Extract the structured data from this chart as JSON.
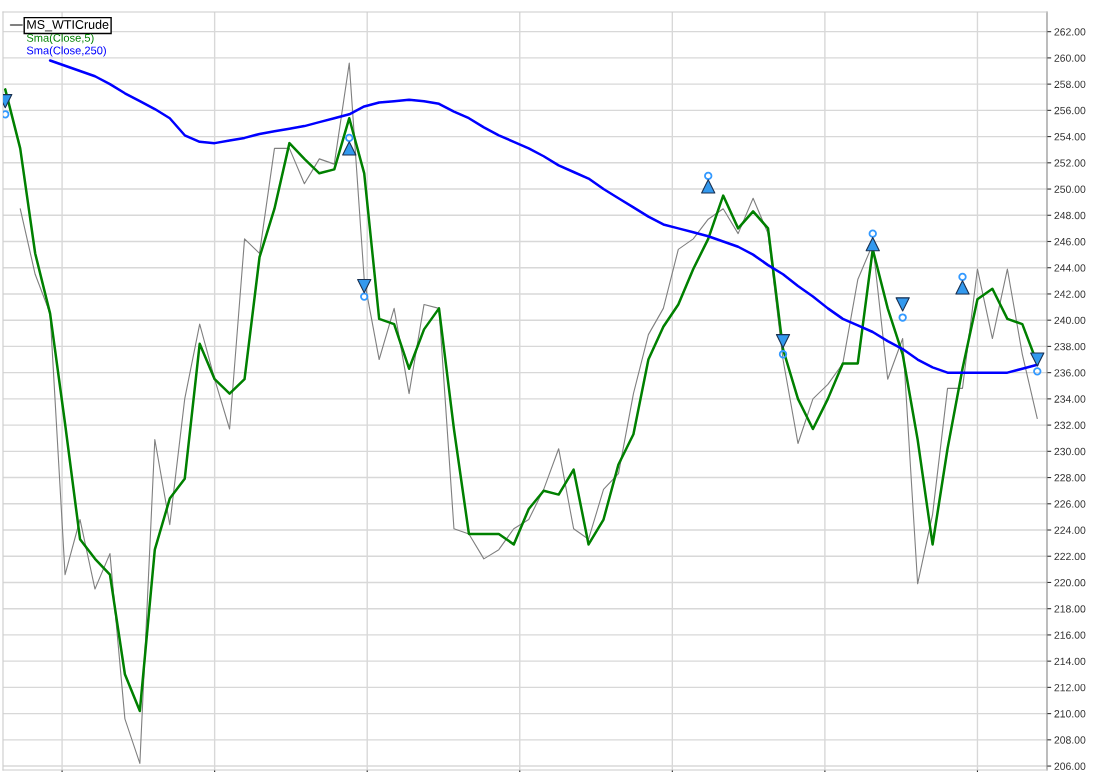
{
  "chart_data": {
    "type": "line",
    "categories": [
      null,
      null,
      null,
      null,
      null,
      null,
      null,
      null,
      null,
      null,
      null,
      null,
      null,
      null,
      null,
      null,
      null,
      null,
      null,
      null,
      null,
      null,
      null,
      null,
      null,
      null,
      null,
      null,
      null,
      null,
      null,
      null,
      null,
      null,
      null,
      null,
      null,
      null,
      null,
      null,
      null,
      null,
      null,
      null,
      null,
      null,
      null,
      null,
      null,
      null,
      null,
      null,
      null,
      null,
      null,
      null,
      null,
      null,
      null,
      null,
      null,
      null,
      null,
      null,
      null,
      null,
      null,
      null,
      null,
      null
    ],
    "series": [
      {
        "name": "MS_WTICrude",
        "color": "#808080",
        "values": [
          null,
          248.5,
          243.5,
          240.5,
          220.6,
          224.8,
          219.5,
          222.2,
          209.6,
          206.2,
          230.9,
          224.4,
          234.0,
          239.7,
          235.5,
          231.7,
          246.2,
          245.1,
          253.1,
          253.1,
          250.4,
          252.3,
          251.9,
          259.6,
          243.1,
          237.0,
          240.9,
          234.4,
          241.2,
          240.9,
          224.1,
          223.7,
          221.8,
          222.5,
          224.1,
          224.8,
          227.1,
          230.2,
          224.1,
          223.3,
          227.1,
          228.3,
          234.4,
          238.9,
          240.9,
          245.4,
          246.2,
          247.7,
          248.5,
          246.6,
          249.3,
          246.6,
          237.0,
          230.6,
          234.0,
          235.1,
          236.7,
          243.1,
          245.8,
          235.5,
          238.6,
          219.9,
          225.2,
          234.8,
          234.8,
          243.9,
          238.6,
          243.9,
          237.4,
          232.5
        ]
      },
      {
        "name": "Sma(Close,5)",
        "color": "#008000",
        "values": [
          257.6,
          253.1,
          245.1,
          240.5,
          232.1,
          223.3,
          221.8,
          220.6,
          213.0,
          210.2,
          222.5,
          226.4,
          227.9,
          238.2,
          235.5,
          234.4,
          235.5,
          244.8,
          248.5,
          253.5,
          252.3,
          251.2,
          251.5,
          255.4,
          251.2,
          240.1,
          239.7,
          236.3,
          239.3,
          240.9,
          231.7,
          223.7,
          223.7,
          223.7,
          222.9,
          225.6,
          227.0,
          226.7,
          228.6,
          222.9,
          224.8,
          229.0,
          231.3,
          237.0,
          239.5,
          241.2,
          243.9,
          246.2,
          249.5,
          247.0,
          248.3,
          247.0,
          237.8,
          234.0,
          231.7,
          234.0,
          236.7,
          236.7,
          245.4,
          240.9,
          237.4,
          230.9,
          222.9,
          230.2,
          236.3,
          241.6,
          242.4,
          240.1,
          239.7,
          236.7
        ]
      },
      {
        "name": "Sma(Close,250)",
        "color": "#0000ff",
        "values": [
          null,
          null,
          null,
          259.8,
          259.4,
          259.0,
          258.6,
          258.0,
          257.3,
          256.7,
          256.1,
          255.4,
          254.1,
          253.6,
          253.5,
          253.7,
          253.9,
          254.2,
          254.4,
          254.6,
          254.8,
          255.1,
          255.4,
          255.7,
          256.3,
          256.6,
          256.7,
          256.8,
          256.7,
          256.5,
          255.9,
          255.4,
          254.7,
          254.1,
          253.6,
          253.1,
          252.5,
          251.8,
          251.3,
          250.8,
          250.0,
          249.3,
          248.6,
          247.9,
          247.3,
          247.0,
          246.7,
          246.4,
          246.0,
          245.6,
          245.0,
          244.2,
          243.5,
          242.6,
          241.8,
          240.9,
          240.1,
          239.6,
          239.1,
          238.4,
          237.8,
          237.0,
          236.4,
          236.0,
          236.0,
          236.0,
          236.0,
          236.0,
          236.3,
          236.6
        ]
      },
      {
        "color": "#3399ee",
        "type": "scatter",
        "marker": "triangle",
        "values": [
          null,
          null,
          null,
          null,
          null,
          null,
          null,
          null,
          null,
          null,
          null,
          null,
          null,
          null,
          null,
          null,
          null,
          null,
          null,
          null,
          null,
          null,
          null,
          253.1,
          null,
          null,
          null,
          null,
          null,
          null,
          null,
          null,
          null,
          null,
          null,
          null,
          null,
          null,
          null,
          null,
          null,
          null,
          null,
          null,
          null,
          null,
          null,
          250.2,
          null,
          null,
          null,
          null,
          null,
          null,
          null,
          null,
          null,
          null,
          245.8,
          null,
          null,
          null,
          null,
          null,
          242.5,
          null,
          null,
          null,
          null,
          null
        ]
      },
      {
        "color": "#3399ee",
        "type": "scatter",
        "marker": "triangle_down",
        "values": [
          256.7,
          null,
          null,
          null,
          null,
          null,
          null,
          null,
          null,
          null,
          null,
          null,
          null,
          null,
          null,
          null,
          null,
          null,
          null,
          null,
          null,
          null,
          null,
          null,
          242.6,
          null,
          null,
          null,
          null,
          null,
          null,
          null,
          null,
          null,
          null,
          null,
          null,
          null,
          null,
          null,
          null,
          null,
          null,
          null,
          null,
          null,
          null,
          null,
          null,
          null,
          null,
          null,
          238.4,
          null,
          null,
          null,
          null,
          null,
          null,
          null,
          241.2,
          null,
          null,
          null,
          null,
          null,
          null,
          null,
          null,
          237.0
        ]
      },
      {
        "color": "#3399ff",
        "type": "scatter",
        "marker": "circle",
        "values": [
          255.7,
          null,
          null,
          null,
          null,
          null,
          null,
          null,
          null,
          null,
          null,
          null,
          null,
          null,
          null,
          null,
          null,
          null,
          null,
          null,
          null,
          null,
          null,
          253.9,
          241.8,
          null,
          null,
          null,
          null,
          null,
          null,
          null,
          null,
          null,
          null,
          null,
          null,
          null,
          null,
          null,
          null,
          null,
          null,
          null,
          null,
          null,
          null,
          251.0,
          null,
          null,
          null,
          null,
          237.4,
          null,
          null,
          null,
          null,
          null,
          246.6,
          null,
          240.2,
          null,
          null,
          null,
          243.3,
          null,
          null,
          null,
          null,
          236.1
        ]
      }
    ],
    "ylim": [
      205.7,
      263.5
    ],
    "yticks": [
      {
        "value": 206,
        "label": "206.00"
      },
      {
        "value": 208,
        "label": "208.00"
      },
      {
        "value": 210,
        "label": "210.00"
      },
      {
        "value": 212,
        "label": "212.00"
      },
      {
        "value": 214,
        "label": "214.00"
      },
      {
        "value": 216,
        "label": "216.00"
      },
      {
        "value": 218,
        "label": "218.00"
      },
      {
        "value": 220,
        "label": "220.00"
      },
      {
        "value": 222,
        "label": "222.00"
      },
      {
        "value": 224,
        "label": "224.00"
      },
      {
        "value": 226,
        "label": "226.00"
      },
      {
        "value": 228,
        "label": "228.00"
      },
      {
        "value": 230,
        "label": "230.00"
      },
      {
        "value": 232,
        "label": "232.00"
      },
      {
        "value": 234,
        "label": "234.00"
      },
      {
        "value": 236,
        "label": "236.00"
      },
      {
        "value": 238,
        "label": "238.00"
      },
      {
        "value": 240,
        "label": "240.00"
      },
      {
        "value": 242,
        "label": "242.00"
      },
      {
        "value": 244,
        "label": "244.00"
      },
      {
        "value": 246,
        "label": "246.00"
      },
      {
        "value": 248,
        "label": "248.00"
      },
      {
        "value": 250,
        "label": "250.00"
      },
      {
        "value": 252,
        "label": "252.00"
      },
      {
        "value": 254,
        "label": "254.00"
      },
      {
        "value": 256,
        "label": "256.00"
      },
      {
        "value": 258,
        "label": "258.00"
      },
      {
        "value": 260,
        "label": "260.00"
      },
      {
        "value": 262,
        "label": "262.00"
      }
    ],
    "tick_labels": "y",
    "grid": true,
    "legend": "top left"
  }
}
